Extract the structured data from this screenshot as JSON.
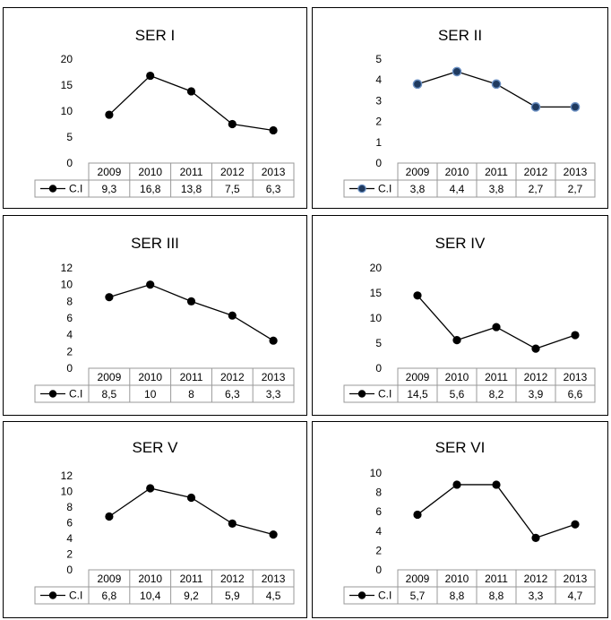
{
  "colors": {
    "line": "#000000",
    "marker": "#000000",
    "ser2_marker": "#1f3a5f",
    "grid_border": "#999999"
  },
  "chart_data": [
    {
      "type": "line",
      "title": "SER I",
      "categories": [
        "2009",
        "2010",
        "2011",
        "2012",
        "2013"
      ],
      "series": [
        {
          "name": "C.I",
          "values": [
            9.3,
            16.8,
            13.8,
            7.5,
            6.3
          ],
          "labels": [
            "9,3",
            "16,8",
            "13,8",
            "7,5",
            "6,3"
          ]
        }
      ],
      "ylim": [
        0,
        20
      ],
      "yticks": [
        "0",
        "5",
        "10",
        "15",
        "20"
      ],
      "data_table": true
    },
    {
      "type": "line",
      "title": "SER II",
      "categories": [
        "2009",
        "2010",
        "2011",
        "2012",
        "2013"
      ],
      "series": [
        {
          "name": "C.I",
          "values": [
            3.8,
            4.4,
            3.8,
            2.7,
            2.7
          ],
          "labels": [
            "3,8",
            "4,4",
            "3,8",
            "2,7",
            "2,7"
          ]
        }
      ],
      "ylim": [
        0,
        5
      ],
      "yticks": [
        "0",
        "1",
        "2",
        "3",
        "4",
        "5"
      ],
      "data_table": true,
      "marker_style": "blue-edge"
    },
    {
      "type": "line",
      "title": "SER III",
      "categories": [
        "2009",
        "2010",
        "2011",
        "2012",
        "2013"
      ],
      "series": [
        {
          "name": "C.I",
          "values": [
            8.5,
            10,
            8,
            6.3,
            3.3
          ],
          "labels": [
            "8,5",
            "10",
            "8",
            "6,3",
            "3,3"
          ]
        }
      ],
      "ylim": [
        0,
        12
      ],
      "yticks": [
        "0",
        "2",
        "4",
        "6",
        "8",
        "10",
        "12"
      ],
      "data_table": true
    },
    {
      "type": "line",
      "title": "SER IV",
      "categories": [
        "2009",
        "2010",
        "2011",
        "2012",
        "2013"
      ],
      "series": [
        {
          "name": "C.I",
          "values": [
            14.5,
            5.6,
            8.2,
            3.9,
            6.6
          ],
          "labels": [
            "14,5",
            "5,6",
            "8,2",
            "3,9",
            "6,6"
          ]
        }
      ],
      "ylim": [
        0,
        20
      ],
      "yticks": [
        "0",
        "5",
        "10",
        "15",
        "20"
      ],
      "data_table": true
    },
    {
      "type": "line",
      "title": "SER V",
      "categories": [
        "2009",
        "2010",
        "2011",
        "2012",
        "2013"
      ],
      "series": [
        {
          "name": "C.I",
          "values": [
            6.8,
            10.4,
            9.2,
            5.9,
            4.5
          ],
          "labels": [
            "6,8",
            "10,4",
            "9,2",
            "5,9",
            "4,5"
          ]
        }
      ],
      "ylim": [
        0,
        12
      ],
      "yticks": [
        "0",
        "2",
        "4",
        "6",
        "8",
        "10",
        "12"
      ],
      "data_table": true
    },
    {
      "type": "line",
      "title": "SER VI",
      "categories": [
        "2009",
        "2010",
        "2011",
        "2012",
        "2013"
      ],
      "series": [
        {
          "name": "C.I",
          "values": [
            5.7,
            8.8,
            8.8,
            3.3,
            4.7
          ],
          "labels": [
            "5,7",
            "8,8",
            "8,8",
            "3,3",
            "4,7"
          ]
        }
      ],
      "ylim": [
        0,
        10
      ],
      "yticks": [
        "0",
        "2",
        "4",
        "6",
        "8",
        "10"
      ],
      "data_table": true
    }
  ]
}
